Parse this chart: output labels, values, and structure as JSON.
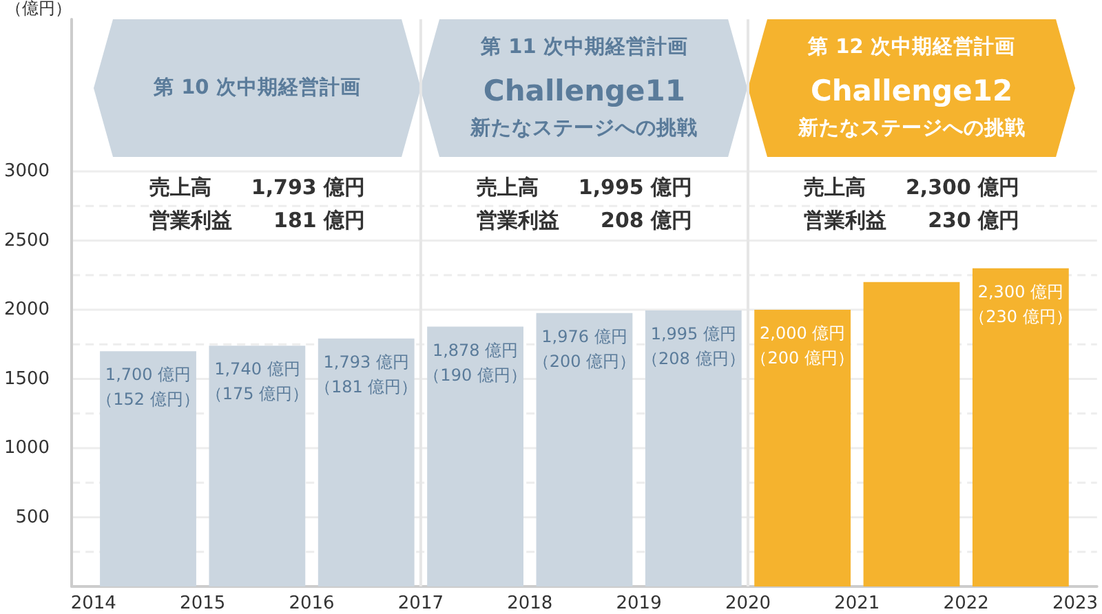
{
  "chart_data": {
    "type": "bar",
    "ylabel": "（億円）",
    "x": [
      2014.5,
      2015.5,
      2016.5,
      2017.5,
      2018.5,
      2019.5,
      2020.5,
      2021.5,
      2022.5
    ],
    "values": [
      1700,
      1740,
      1793,
      1878,
      1976,
      1995,
      2000,
      2200,
      2300
    ],
    "colors": [
      "#cbd6e0",
      "#cbd6e0",
      "#cbd6e0",
      "#cbd6e0",
      "#cbd6e0",
      "#cbd6e0",
      "#f5b32e",
      "#f5b32e",
      "#f5b32e"
    ],
    "value_labels": [
      "1,700 億円（152 億円）",
      "1,740 億円（175 億円）",
      "1,793 億円（181 億円）",
      "1,878 億円（190 億円）",
      "1,976 億円（200 億円）",
      "1,995 億円（208 億円）",
      "2,000 億円（200 億円）",
      null,
      "2,300 億円（230 億円）"
    ],
    "xlim": [
      2013.8,
      2023.2
    ],
    "xticks": [
      2014,
      2015,
      2016,
      2017,
      2018,
      2019,
      2020,
      2021,
      2022,
      2023
    ],
    "ylim": [
      0,
      4100
    ],
    "yticks": [
      {
        "value": 250,
        "label": null
      },
      500,
      {
        "value": 750,
        "label": null
      },
      1000,
      {
        "value": 1250,
        "label": null
      },
      1500,
      {
        "value": 1750,
        "label": null
      },
      2000,
      {
        "value": 2250,
        "label": null
      },
      2500,
      {
        "value": 2750,
        "label": null
      },
      3000
    ],
    "grid": "y",
    "ref_lines": [
      {
        "axis": "x",
        "value": 2017,
        "color": "#e6e6e6"
      },
      {
        "axis": "x",
        "value": 2020,
        "color": "#e6e6e6"
      }
    ],
    "annotations": [
      "第 10 次中期経営計画",
      "第 11 次中期経営計画\nChallenge11\n新たなステージへの挑戦",
      "第 12 次中期経営計画\nChallenge12\n新たなステージへの挑戦",
      "売上高 1,793 億円",
      "営業利益 181 億円",
      "売上高 1,995 億円",
      "営業利益 208 億円",
      "売上高 2,300 億円",
      "営業利益 230 億円"
    ]
  }
}
